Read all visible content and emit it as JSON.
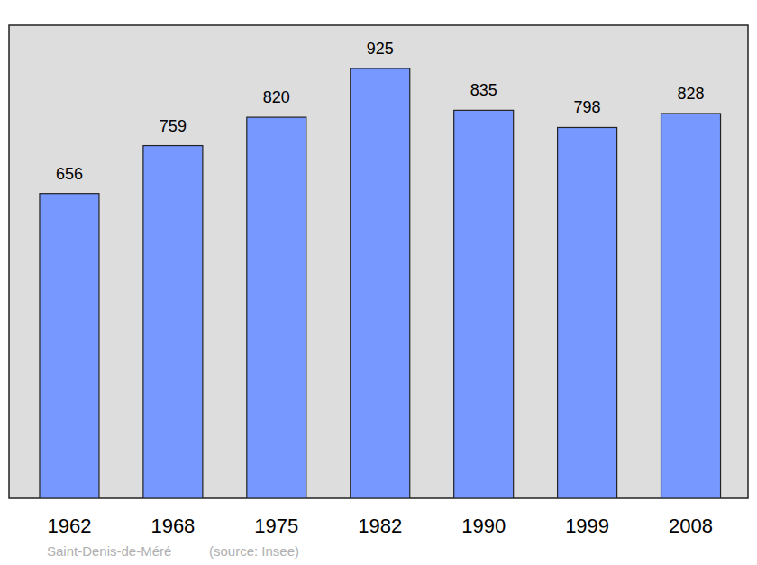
{
  "chart_data": {
    "type": "bar",
    "categories": [
      "1962",
      "1968",
      "1975",
      "1982",
      "1990",
      "1999",
      "2008"
    ],
    "values": [
      656,
      759,
      820,
      925,
      835,
      798,
      828
    ],
    "color": "#7799ff",
    "ylim": [
      0,
      1018
    ],
    "data_labels": true,
    "grid": false,
    "tick_labels": "x",
    "annotations": [
      "Saint-Denis-de-Méré",
      "(source: Insee)"
    ]
  }
}
